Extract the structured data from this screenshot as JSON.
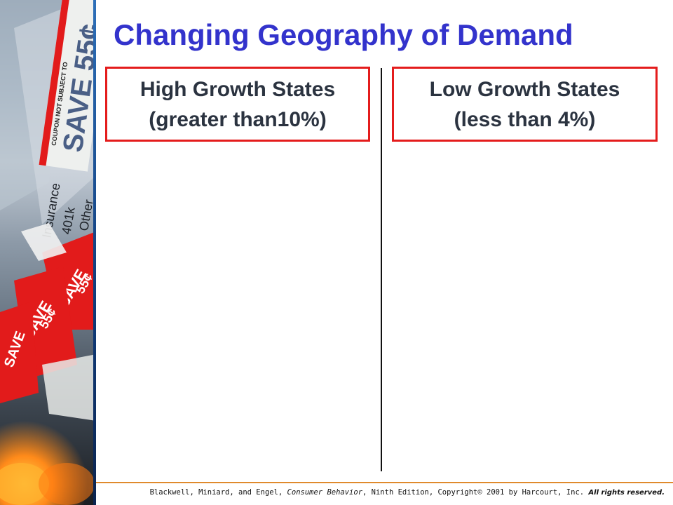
{
  "slide": {
    "title": "Changing Geography of Demand",
    "columns": [
      {
        "line1": "High Growth States",
        "line2": "(greater than10%)"
      },
      {
        "line1": "Low Growth States",
        "line2": "(less than 4%)"
      }
    ],
    "footer": {
      "citation_start": "Blackwell, Miniard, and Engel, ",
      "citation_title": "Consumer Behavior",
      "citation_end": ", Ninth Edition, Copyright© 2001 by Harcourt, Inc. ",
      "rights": "All rights reserved."
    },
    "side_art": {
      "visible_text": [
        "SAVE 55¢",
        "COUPON NOT SUBJECT TO",
        "SAVE",
        "55¢",
        "SAVE",
        "55¢",
        "SAVE",
        "Other",
        "401k",
        "Insurance"
      ],
      "colors": {
        "coupon_red": "#e21b1b",
        "flame": "#ff8a1a",
        "edge_blue": "#1f5aa6"
      }
    },
    "colors": {
      "title": "#3333cc",
      "box_border": "#e41c1c",
      "text": "#2b3340",
      "footer_rule": "#e08a2c"
    }
  }
}
